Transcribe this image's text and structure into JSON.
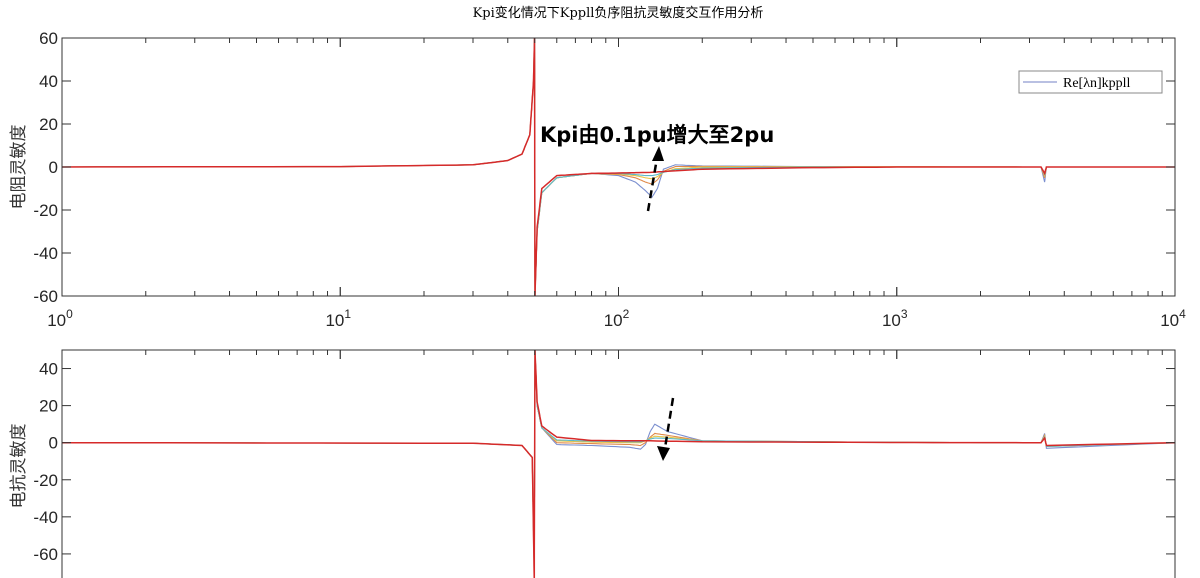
{
  "chart_data": [
    {
      "type": "line",
      "title": "Kpi变化情况下Kppll负序阻抗灵敏度交互作用分析",
      "xlabel": "",
      "ylabel": "电阻灵敏度",
      "xscale": "log",
      "xlim": [
        1,
        10000
      ],
      "ylim": [
        -60,
        60
      ],
      "xticks": [
        1,
        10,
        100,
        1000,
        10000
      ],
      "xtick_labels": [
        {
          "base": "10",
          "exp": "0"
        },
        {
          "base": "10",
          "exp": "1"
        },
        {
          "base": "10",
          "exp": "2"
        },
        {
          "base": "10",
          "exp": "3"
        },
        {
          "base": "10",
          "exp": "4"
        }
      ],
      "yticks": [
        60,
        40,
        20,
        0,
        -20,
        -40,
        -60
      ],
      "grid": false,
      "legend": {
        "position": "top-right",
        "entries": [
          "Re[λn]kppll"
        ]
      },
      "annotation": {
        "text": "Kpi由0.1pu增大至2pu",
        "arrow": "up"
      },
      "series": [
        {
          "color": "#7b8fcf",
          "x": [
            1,
            10,
            30,
            40,
            45,
            48,
            49.5,
            49.9,
            50.1,
            51,
            53,
            60,
            80,
            100,
            115,
            125,
            132,
            138,
            145,
            160,
            200,
            500,
            1000,
            3300,
            3400,
            3450,
            10000
          ],
          "y": [
            0,
            0.2,
            1,
            3,
            6,
            15,
            40,
            60,
            -60,
            -30,
            -12,
            -5,
            -3,
            -4,
            -7,
            -11,
            -14,
            -10,
            -1,
            1,
            0.5,
            0.2,
            0.1,
            0,
            -7,
            0,
            0
          ]
        },
        {
          "color": "#e08a4a",
          "x": [
            1,
            10,
            30,
            40,
            45,
            48,
            49.5,
            49.9,
            50.1,
            51,
            53,
            60,
            80,
            100,
            115,
            125,
            132,
            138,
            145,
            160,
            200,
            500,
            1000,
            3300,
            3400,
            3450,
            10000
          ],
          "y": [
            0,
            0.2,
            1,
            3,
            6,
            15,
            40,
            60,
            -60,
            -30,
            -12,
            -5,
            -3,
            -3.5,
            -5,
            -7,
            -8,
            -6,
            -2,
            0.2,
            0.3,
            0.1,
            0.1,
            0,
            -5,
            0,
            0
          ]
        },
        {
          "color": "#e8c547",
          "x": [
            1,
            10,
            30,
            40,
            45,
            48,
            49.5,
            49.9,
            50.1,
            51,
            53,
            60,
            80,
            100,
            115,
            125,
            132,
            138,
            145,
            160,
            200,
            500,
            1000,
            3300,
            3400,
            3450,
            10000
          ],
          "y": [
            0,
            0.2,
            1,
            3,
            6,
            15,
            40,
            60,
            -60,
            -30,
            -12,
            -5,
            -3,
            -3.2,
            -4,
            -5,
            -5.5,
            -4.5,
            -2.5,
            -0.8,
            0,
            0.1,
            0.1,
            0,
            -4,
            0,
            0
          ]
        },
        {
          "color": "#5cb8c9",
          "x": [
            1,
            10,
            30,
            40,
            45,
            48,
            49.5,
            49.9,
            50.1,
            51,
            53,
            60,
            80,
            100,
            115,
            125,
            132,
            138,
            145,
            160,
            200,
            500,
            1000,
            3300,
            3400,
            3450,
            10000
          ],
          "y": [
            0,
            0.2,
            1,
            3,
            6,
            15,
            40,
            60,
            -60,
            -30,
            -12,
            -5,
            -3,
            -3,
            -3.5,
            -4,
            -4,
            -3.5,
            -2.5,
            -1.2,
            -0.5,
            0,
            0,
            0,
            -3.5,
            0,
            0
          ]
        },
        {
          "color": "#d62a2a",
          "x": [
            1,
            10,
            30,
            40,
            45,
            48,
            49.5,
            49.9,
            50.1,
            51,
            53,
            60,
            80,
            100,
            130,
            150,
            200,
            500,
            1000,
            3300,
            3400,
            3450,
            10000
          ],
          "y": [
            0,
            0.2,
            1,
            3,
            6,
            15,
            40,
            60,
            -60,
            -28,
            -10,
            -4,
            -3,
            -2.8,
            -2.5,
            -2,
            -1,
            -0.3,
            0,
            0,
            -3,
            0,
            0
          ]
        }
      ]
    },
    {
      "type": "line",
      "title": "",
      "xlabel": "",
      "ylabel": "电抗灵敏度",
      "xscale": "log",
      "xlim": [
        1,
        10000
      ],
      "ylim": [
        -80,
        50
      ],
      "yticks": [
        40,
        20,
        0,
        -20,
        -40,
        -60
      ],
      "grid": false,
      "annotation": {
        "arrow": "down"
      },
      "series": [
        {
          "color": "#7b8fcf",
          "x": [
            1,
            30,
            45,
            49,
            49.8,
            50.1,
            51,
            53,
            60,
            80,
            110,
            120,
            125,
            130,
            135,
            150,
            200,
            1000,
            3300,
            3400,
            3450,
            10000
          ],
          "y": [
            0,
            -0.3,
            -1.5,
            -8,
            -70,
            50,
            20,
            8,
            -1,
            -1.5,
            -2.5,
            -3.5,
            -1,
            6,
            10,
            6,
            1,
            0.2,
            0,
            5,
            -3,
            0
          ]
        },
        {
          "color": "#e08a4a",
          "x": [
            1,
            30,
            45,
            49,
            49.8,
            50.1,
            51,
            53,
            60,
            80,
            110,
            120,
            125,
            130,
            135,
            150,
            200,
            1000,
            3300,
            3400,
            3450,
            10000
          ],
          "y": [
            0,
            -0.3,
            -1.5,
            -8,
            -70,
            50,
            20,
            8,
            0,
            -0.5,
            -1,
            -1.5,
            0,
            3,
            5,
            4,
            1,
            0.2,
            0,
            4,
            -2,
            0
          ]
        },
        {
          "color": "#e8c547",
          "x": [
            1,
            30,
            45,
            49,
            49.8,
            50.1,
            51,
            53,
            60,
            80,
            110,
            120,
            125,
            130,
            135,
            150,
            200,
            1000,
            3300,
            3400,
            3450,
            10000
          ],
          "y": [
            0,
            -0.3,
            -1.5,
            -8,
            -70,
            50,
            20,
            8,
            1,
            0.3,
            0,
            0,
            1,
            2.5,
            3.5,
            3,
            1,
            0.2,
            0,
            3.5,
            -2,
            0
          ]
        },
        {
          "color": "#5cb8c9",
          "x": [
            1,
            30,
            45,
            49,
            49.8,
            50.1,
            51,
            53,
            60,
            80,
            110,
            120,
            125,
            130,
            135,
            150,
            200,
            1000,
            3300,
            3400,
            3450,
            10000
          ],
          "y": [
            0,
            -0.3,
            -1.5,
            -8,
            -70,
            50,
            20,
            8,
            1.5,
            0.8,
            0.5,
            0.5,
            1,
            2,
            2.5,
            2.3,
            1,
            0.2,
            0,
            3,
            -2,
            0
          ]
        },
        {
          "color": "#d62a2a",
          "x": [
            1,
            30,
            45,
            49,
            49.8,
            50.1,
            51,
            53,
            60,
            80,
            130,
            200,
            1000,
            3300,
            3400,
            3450,
            10000
          ],
          "y": [
            0,
            -0.3,
            -1.5,
            -8,
            -75,
            50,
            22,
            9,
            3,
            1.2,
            1,
            0.5,
            0.1,
            0,
            2.5,
            -1.5,
            0
          ]
        }
      ]
    }
  ]
}
